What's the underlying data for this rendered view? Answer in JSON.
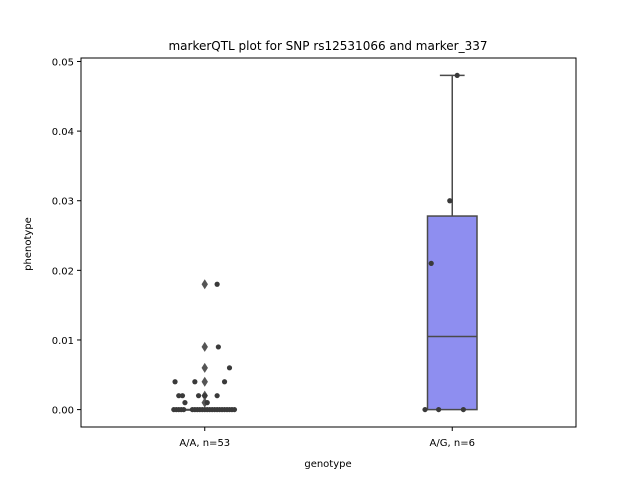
{
  "chart_data": {
    "type": "box",
    "title": "markerQTL plot for SNP rs12531066 and marker_337",
    "xlabel": "genotype",
    "ylabel": "phenotype",
    "ylim": [
      -0.0025,
      0.0505
    ],
    "yticks": [
      "0.00",
      "0.01",
      "0.02",
      "0.03",
      "0.04",
      "0.05"
    ],
    "ytick_values": [
      0.0,
      0.01,
      0.02,
      0.03,
      0.04,
      0.05
    ],
    "categories": [
      "A/A, n=53",
      "A/G, n=6"
    ],
    "boxes": [
      {
        "category": "A/A, n=53",
        "q1": 0.0,
        "median": 0.0,
        "q3": 0.0,
        "whisker_low": 0.0,
        "whisker_high": 0.0,
        "fliers": [
          0.018,
          0.009,
          0.006,
          0.004,
          0.002,
          0.001
        ],
        "color": "#8e8ef0"
      },
      {
        "category": "A/G, n=6",
        "q1": 0.0,
        "median": 0.0105,
        "q3": 0.0278,
        "whisker_low": 0.0,
        "whisker_high": 0.048,
        "fliers": [],
        "color": "#8e8ef0"
      }
    ],
    "points": [
      {
        "category": 0,
        "offset": -0.24,
        "y": 0.004
      },
      {
        "category": 0,
        "offset": 0.16,
        "y": 0.004
      },
      {
        "category": 0,
        "offset": -0.21,
        "y": 0.002
      },
      {
        "category": 0,
        "offset": -0.18,
        "y": 0.002
      },
      {
        "category": 0,
        "offset": -0.05,
        "y": 0.002
      },
      {
        "category": 0,
        "offset": 0.0,
        "y": 0.002
      },
      {
        "category": 0,
        "offset": 0.1,
        "y": 0.002
      },
      {
        "category": 0,
        "offset": 0.2,
        "y": 0.006
      },
      {
        "category": 0,
        "offset": 0.11,
        "y": 0.009
      },
      {
        "category": 0,
        "offset": 0.1,
        "y": 0.018
      },
      {
        "category": 0,
        "offset": -0.08,
        "y": 0.004
      },
      {
        "category": 0,
        "offset": -0.16,
        "y": 0.001
      },
      {
        "category": 0,
        "offset": 0.02,
        "y": 0.001
      },
      {
        "category": 0,
        "offset": -0.25,
        "y": 0.0
      },
      {
        "category": 0,
        "offset": -0.23,
        "y": 0.0
      },
      {
        "category": 0,
        "offset": -0.21,
        "y": 0.0
      },
      {
        "category": 0,
        "offset": -0.19,
        "y": 0.0
      },
      {
        "category": 0,
        "offset": -0.17,
        "y": 0.0
      },
      {
        "category": 0,
        "offset": -0.1,
        "y": 0.0
      },
      {
        "category": 0,
        "offset": -0.08,
        "y": 0.0
      },
      {
        "category": 0,
        "offset": -0.06,
        "y": 0.0
      },
      {
        "category": 0,
        "offset": -0.04,
        "y": 0.0
      },
      {
        "category": 0,
        "offset": -0.02,
        "y": 0.0
      },
      {
        "category": 0,
        "offset": 0.0,
        "y": 0.0
      },
      {
        "category": 0,
        "offset": 0.02,
        "y": 0.0
      },
      {
        "category": 0,
        "offset": 0.04,
        "y": 0.0
      },
      {
        "category": 0,
        "offset": 0.06,
        "y": 0.0
      },
      {
        "category": 0,
        "offset": 0.08,
        "y": 0.0
      },
      {
        "category": 0,
        "offset": 0.1,
        "y": 0.0
      },
      {
        "category": 0,
        "offset": 0.12,
        "y": 0.0
      },
      {
        "category": 0,
        "offset": 0.14,
        "y": 0.0
      },
      {
        "category": 0,
        "offset": 0.16,
        "y": 0.0
      },
      {
        "category": 0,
        "offset": 0.18,
        "y": 0.0
      },
      {
        "category": 0,
        "offset": 0.2,
        "y": 0.0
      },
      {
        "category": 0,
        "offset": 0.22,
        "y": 0.0
      },
      {
        "category": 0,
        "offset": 0.24,
        "y": 0.0
      },
      {
        "category": 1,
        "offset": 0.04,
        "y": 0.048
      },
      {
        "category": 1,
        "offset": -0.02,
        "y": 0.03
      },
      {
        "category": 1,
        "offset": -0.17,
        "y": 0.021
      },
      {
        "category": 1,
        "offset": -0.22,
        "y": 0.0
      },
      {
        "category": 1,
        "offset": -0.11,
        "y": 0.0
      },
      {
        "category": 1,
        "offset": 0.09,
        "y": 0.0
      }
    ],
    "point_color": "#3a3a3a",
    "line_color": "#4a4a4a"
  }
}
